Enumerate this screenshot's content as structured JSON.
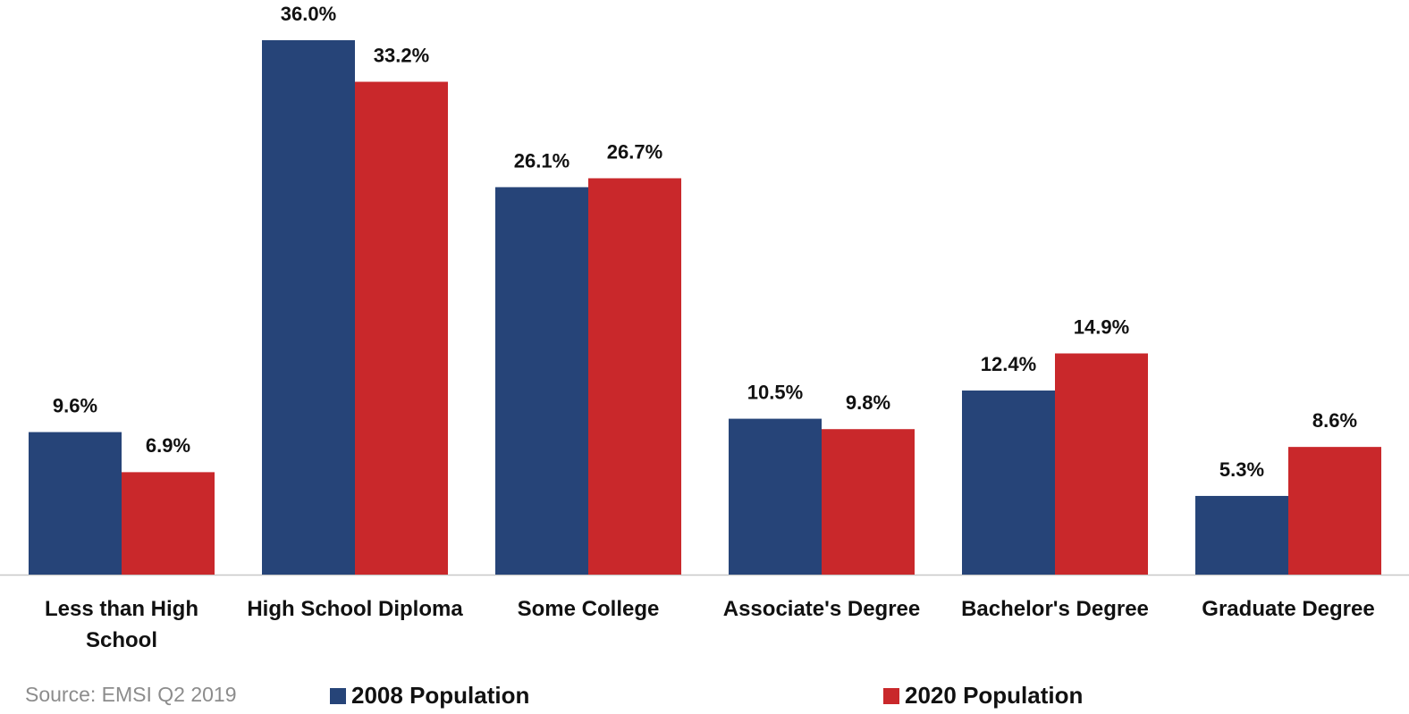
{
  "chart_data": {
    "type": "bar",
    "categories": [
      "Less than High School",
      "High School Diploma",
      "Some College",
      "Associate's Degree",
      "Bachelor's Degree",
      "Graduate Degree"
    ],
    "series": [
      {
        "name": "2008 Population",
        "color": "#264478",
        "values": [
          9.6,
          36.0,
          26.1,
          10.5,
          12.4,
          5.3
        ],
        "value_labels": [
          "9.6%",
          "36.0%",
          "26.1%",
          "10.5%",
          "12.4%",
          "5.3%"
        ]
      },
      {
        "name": "2020 Population",
        "color": "#c9282b",
        "values": [
          6.9,
          33.2,
          26.7,
          9.8,
          14.9,
          8.6
        ],
        "value_labels": [
          "6.9%",
          "33.2%",
          "26.7%",
          "9.8%",
          "14.9%",
          "8.6%"
        ]
      }
    ],
    "ylim": [
      0,
      36
    ],
    "source": "Source: EMSI Q2 2019"
  }
}
